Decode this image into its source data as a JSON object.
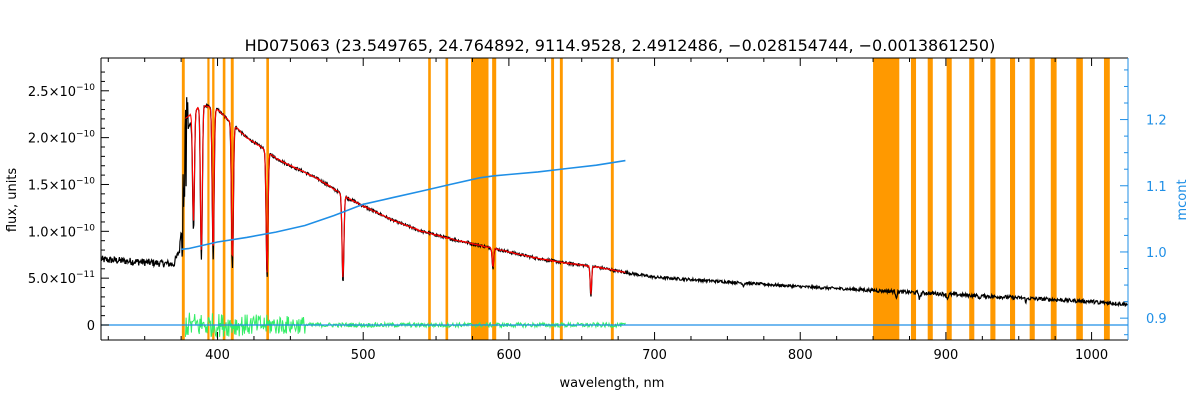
{
  "chart_data": {
    "type": "line",
    "title": "HD075063    (23.549765, 24.764892, 9114.9528, 2.4912486, −0.028154744, −0.0013861250)",
    "xlabel": "wavelength, nm",
    "ylabel": "flux, units",
    "y2label": "mcont",
    "xlim": [
      320,
      1025
    ],
    "ylim": [
      -1.6e-11,
      2.85e-10
    ],
    "y2lim": [
      0.867,
      1.293
    ],
    "x_ticks": [
      400,
      500,
      600,
      700,
      800,
      900,
      1000
    ],
    "x_tick_labels": [
      "400",
      "500",
      "600",
      "700",
      "800",
      "900",
      "1000"
    ],
    "y_ticks": [
      0,
      5e-11,
      1e-10,
      1.5e-10,
      2e-10,
      2.5e-10
    ],
    "y_tick_labels": [
      {
        "mant": "0",
        "exp": ""
      },
      {
        "mant": "5.0×10",
        "exp": "−11"
      },
      {
        "mant": "1.0×10",
        "exp": "−10"
      },
      {
        "mant": "1.5×10",
        "exp": "−10"
      },
      {
        "mant": "2.0×10",
        "exp": "−10"
      },
      {
        "mant": "2.5×10",
        "exp": "−10"
      }
    ],
    "y2_ticks": [
      0.9,
      1.0,
      1.1,
      1.2
    ],
    "y2_tick_labels": [
      "0.9",
      "1.0",
      "1.1",
      "1.2"
    ],
    "colors": {
      "observed": "#000000",
      "model": "#ff0000",
      "residual": "#33ee66",
      "mcont": "#1f8fe6",
      "mask": "#ff9900",
      "axis": "#000000",
      "right_axis": "#1f8fe6"
    },
    "masked_regions": [
      [
        375.5,
        377.5
      ],
      [
        393.0,
        394.5
      ],
      [
        396.3,
        397.9
      ],
      [
        403.6,
        405.4
      ],
      [
        409.1,
        411.1
      ],
      [
        433.5,
        435.3
      ],
      [
        544.6,
        546.4
      ],
      [
        556.5,
        558.3
      ],
      [
        574.0,
        586.0
      ],
      [
        588.5,
        591.3
      ],
      [
        629.0,
        631.0
      ],
      [
        635.0,
        637.0
      ],
      [
        670.0,
        672.0
      ],
      [
        850.0,
        868.0
      ],
      [
        876.0,
        879.5
      ],
      [
        887.5,
        891.0
      ],
      [
        900.5,
        904.0
      ],
      [
        916.0,
        919.5
      ],
      [
        930.5,
        934.0
      ],
      [
        944.0,
        947.5
      ],
      [
        957.5,
        961.0
      ],
      [
        972.0,
        976.0
      ],
      [
        989.5,
        994.0
      ],
      [
        1008.5,
        1012.5
      ]
    ],
    "series": [
      {
        "role": "observed",
        "x": [
          320,
          340,
          360,
          370,
          374,
          377,
          380,
          385,
          390,
          400,
          410,
          420,
          430,
          440,
          450,
          460,
          470,
          480,
          490,
          500,
          520,
          540,
          560,
          580,
          600,
          620,
          640,
          660,
          680,
          700,
          750,
          800,
          850,
          900,
          950,
          1000,
          1025
        ],
        "y": [
          7e-11,
          6.8e-11,
          6.6e-11,
          6.5e-11,
          8e-11,
          1.5e-10,
          2.1e-10,
          2.3e-10,
          2.35e-10,
          2.3e-10,
          2.15e-10,
          2e-10,
          1.9e-10,
          1.78e-10,
          1.7e-10,
          1.63e-10,
          1.55e-10,
          1.45e-10,
          1.35e-10,
          1.27e-10,
          1.12e-10,
          1e-10,
          9.2e-11,
          8.5e-11,
          7.8e-11,
          7.1e-11,
          6.6e-11,
          6.2e-11,
          5.6e-11,
          5.1e-11,
          4.6e-11,
          4.1e-11,
          3.7e-11,
          3.3e-11,
          2.9e-11,
          2.5e-11,
          2.2e-11
        ]
      },
      {
        "role": "model",
        "x": [
          378,
          385,
          390,
          400,
          410,
          420,
          430,
          440,
          450,
          460,
          470,
          480,
          490,
          500,
          520,
          540,
          560,
          580,
          600,
          620,
          640,
          660,
          680
        ],
        "y": [
          2.2e-10,
          2.3e-10,
          2.35e-10,
          2.3e-10,
          2.15e-10,
          2e-10,
          1.9e-10,
          1.78e-10,
          1.7e-10,
          1.63e-10,
          1.55e-10,
          1.45e-10,
          1.35e-10,
          1.27e-10,
          1.12e-10,
          1e-10,
          9.2e-11,
          8.5e-11,
          7.8e-11,
          7.1e-11,
          6.6e-11,
          6.2e-11,
          5.6e-11
        ]
      },
      {
        "role": "mcont",
        "axis": "right",
        "x": [
          375,
          380,
          400,
          420,
          440,
          460,
          480,
          500,
          520,
          540,
          560,
          580,
          590,
          600,
          620,
          640,
          660,
          680
        ],
        "y": [
          1.004,
          1.005,
          1.015,
          1.022,
          1.03,
          1.04,
          1.055,
          1.072,
          1.082,
          1.092,
          1.102,
          1.112,
          1.115,
          1.117,
          1.121,
          1.126,
          1.131,
          1.138
        ]
      },
      {
        "role": "residual",
        "x": [
          378,
          680
        ],
        "y": [
          0,
          0
        ]
      }
    ],
    "absorption_lines": [
      {
        "x": 383.5,
        "y": 1e-10
      },
      {
        "x": 388.9,
        "y": 7e-11
      },
      {
        "x": 397.0,
        "y": 7e-11
      },
      {
        "x": 410.2,
        "y": 6e-11
      },
      {
        "x": 434.0,
        "y": 5e-11
      },
      {
        "x": 486.1,
        "y": 4.5e-11
      },
      {
        "x": 589.0,
        "y": 6e-11
      },
      {
        "x": 656.3,
        "y": 3e-11
      },
      {
        "x": 761.0,
        "y": 4.2e-11
      },
      {
        "x": 866.0,
        "y": 3e-11
      },
      {
        "x": 882.0,
        "y": 2.8e-11
      },
      {
        "x": 901.0,
        "y": 2.8e-11
      },
      {
        "x": 923.0,
        "y": 2.8e-11
      },
      {
        "x": 955.0,
        "y": 2.5e-11
      },
      {
        "x": 1005.0,
        "y": 2.2e-11
      }
    ]
  }
}
